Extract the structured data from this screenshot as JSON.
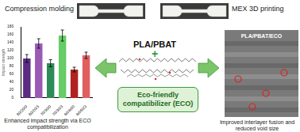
{
  "left_title": "Compression molding",
  "right_title": "MEX 3D printing",
  "center": {
    "material": "PLA/PBAT",
    "plus": "+",
    "compatibilizer": "Eco-friendly compatibilizer (ECO)"
  },
  "left_caption": "Enhanced impact strength via ECO compatibilization",
  "right_caption": "Improved interlayer fusion and reduced void size",
  "sem_label": "PLA/PBAT/ECO",
  "chart_data": {
    "type": "bar",
    "y_label": "Impact strength",
    "categories": [
      "80/20/0",
      "80/20/3",
      "70/30/0",
      "70/30/3",
      "60/40/0",
      "60/40/3"
    ],
    "values": [
      100,
      138,
      88,
      158,
      72,
      108
    ],
    "errors": [
      10,
      12,
      9,
      14,
      6,
      8
    ],
    "colors": [
      "#5b2c83",
      "#9b59b6",
      "#2e8b57",
      "#66cc66",
      "#b22222",
      "#e06060"
    ],
    "ylim": [
      0,
      180
    ],
    "yticks": [
      0,
      20,
      40,
      60,
      80,
      100,
      120,
      140,
      160,
      180
    ],
    "grid": false
  }
}
